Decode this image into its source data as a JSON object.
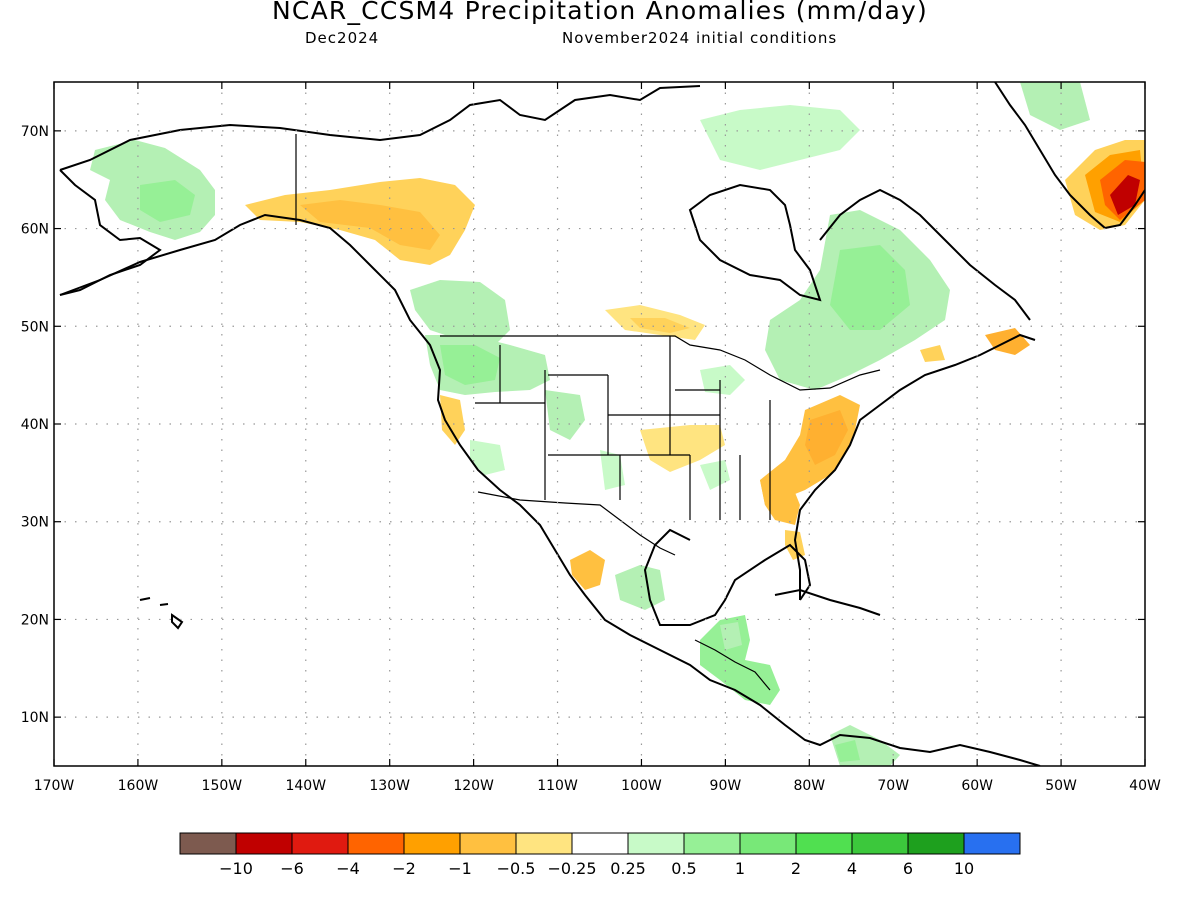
{
  "title": "NCAR_CCSM4 Precipitation Anomalies (mm/day)",
  "subtitle_left": "Dec2024",
  "subtitle_right": "November2024 initial conditions",
  "map": {
    "projection": "cylindrical equidistant",
    "lon_range": [
      -170,
      -40
    ],
    "lat_range": [
      5,
      75
    ],
    "grid": "dotted",
    "lat_ticks": [
      {
        "value": 10,
        "label": "10N"
      },
      {
        "value": 20,
        "label": "20N"
      },
      {
        "value": 30,
        "label": "30N"
      },
      {
        "value": 40,
        "label": "40N"
      },
      {
        "value": 50,
        "label": "50N"
      },
      {
        "value": 60,
        "label": "60N"
      },
      {
        "value": 70,
        "label": "70N"
      }
    ],
    "lon_ticks": [
      {
        "value": -170,
        "label": "170W"
      },
      {
        "value": -160,
        "label": "160W"
      },
      {
        "value": -150,
        "label": "150W"
      },
      {
        "value": -140,
        "label": "140W"
      },
      {
        "value": -130,
        "label": "130W"
      },
      {
        "value": -120,
        "label": "120W"
      },
      {
        "value": -110,
        "label": "110W"
      },
      {
        "value": -100,
        "label": "100W"
      },
      {
        "value": -90,
        "label": "90W"
      },
      {
        "value": -80,
        "label": "80W"
      },
      {
        "value": -70,
        "label": "70W"
      },
      {
        "value": -60,
        "label": "60W"
      },
      {
        "value": -50,
        "label": "50W"
      },
      {
        "value": -40,
        "label": "40W"
      }
    ]
  },
  "colorbar": {
    "colors": [
      "#7d5a4f",
      "#c00000",
      "#e01a10",
      "#ff6400",
      "#ffa000",
      "#ffc040",
      "#ffe480",
      "#ffffff",
      "#c8fac8",
      "#96f096",
      "#78e878",
      "#50e050",
      "#3cc83c",
      "#1ea01e",
      "#2870f0"
    ],
    "labels": [
      "−10",
      "−6",
      "−4",
      "−2",
      "−1",
      "−0.5",
      "−0.25",
      "0.25",
      "0.5",
      "1",
      "2",
      "4",
      "6",
      "10"
    ]
  },
  "anomaly_regions": [
    {
      "name": "western-alaska",
      "value": 0.7,
      "color": "#b4f0b4"
    },
    {
      "name": "southeast-alaska-coast",
      "value": -0.6,
      "color": "#ffd25a"
    },
    {
      "name": "british-columbia",
      "value": 0.6,
      "color": "#b4f0b4"
    },
    {
      "name": "pacific-northwest",
      "value": 0.8,
      "color": "#96f096"
    },
    {
      "name": "northern-rockies",
      "value": 0.6,
      "color": "#b4f0b4"
    },
    {
      "name": "california-coast",
      "value": -0.6,
      "color": "#ffd25a"
    },
    {
      "name": "lake-superior-ontario",
      "value": -0.4,
      "color": "#ffe480"
    },
    {
      "name": "central-plains",
      "value": -0.3,
      "color": "#ffe480"
    },
    {
      "name": "ohio-valley",
      "value": 0.5,
      "color": "#c8fac8"
    },
    {
      "name": "quebec-labrador",
      "value": 1.5,
      "color": "#78e878"
    },
    {
      "name": "mid-atlantic",
      "value": -1.2,
      "color": "#ffb030"
    },
    {
      "name": "southeast-us",
      "value": -0.7,
      "color": "#ffc040"
    },
    {
      "name": "florida",
      "value": -0.5,
      "color": "#ffd25a"
    },
    {
      "name": "newfoundland",
      "value": -0.8,
      "color": "#ffb030"
    },
    {
      "name": "southern-greenland",
      "value": -4,
      "color": "#ff6400"
    },
    {
      "name": "greenland-tip",
      "value": -8,
      "color": "#c00000"
    },
    {
      "name": "greenland-north",
      "value": 1,
      "color": "#96f096"
    },
    {
      "name": "western-mexico",
      "value": -0.8,
      "color": "#ffc040"
    },
    {
      "name": "central-mexico",
      "value": 0.8,
      "color": "#96f096"
    },
    {
      "name": "central-america",
      "value": 1.5,
      "color": "#78e878"
    },
    {
      "name": "colombia-venezuela",
      "value": 1,
      "color": "#96f096"
    }
  ]
}
